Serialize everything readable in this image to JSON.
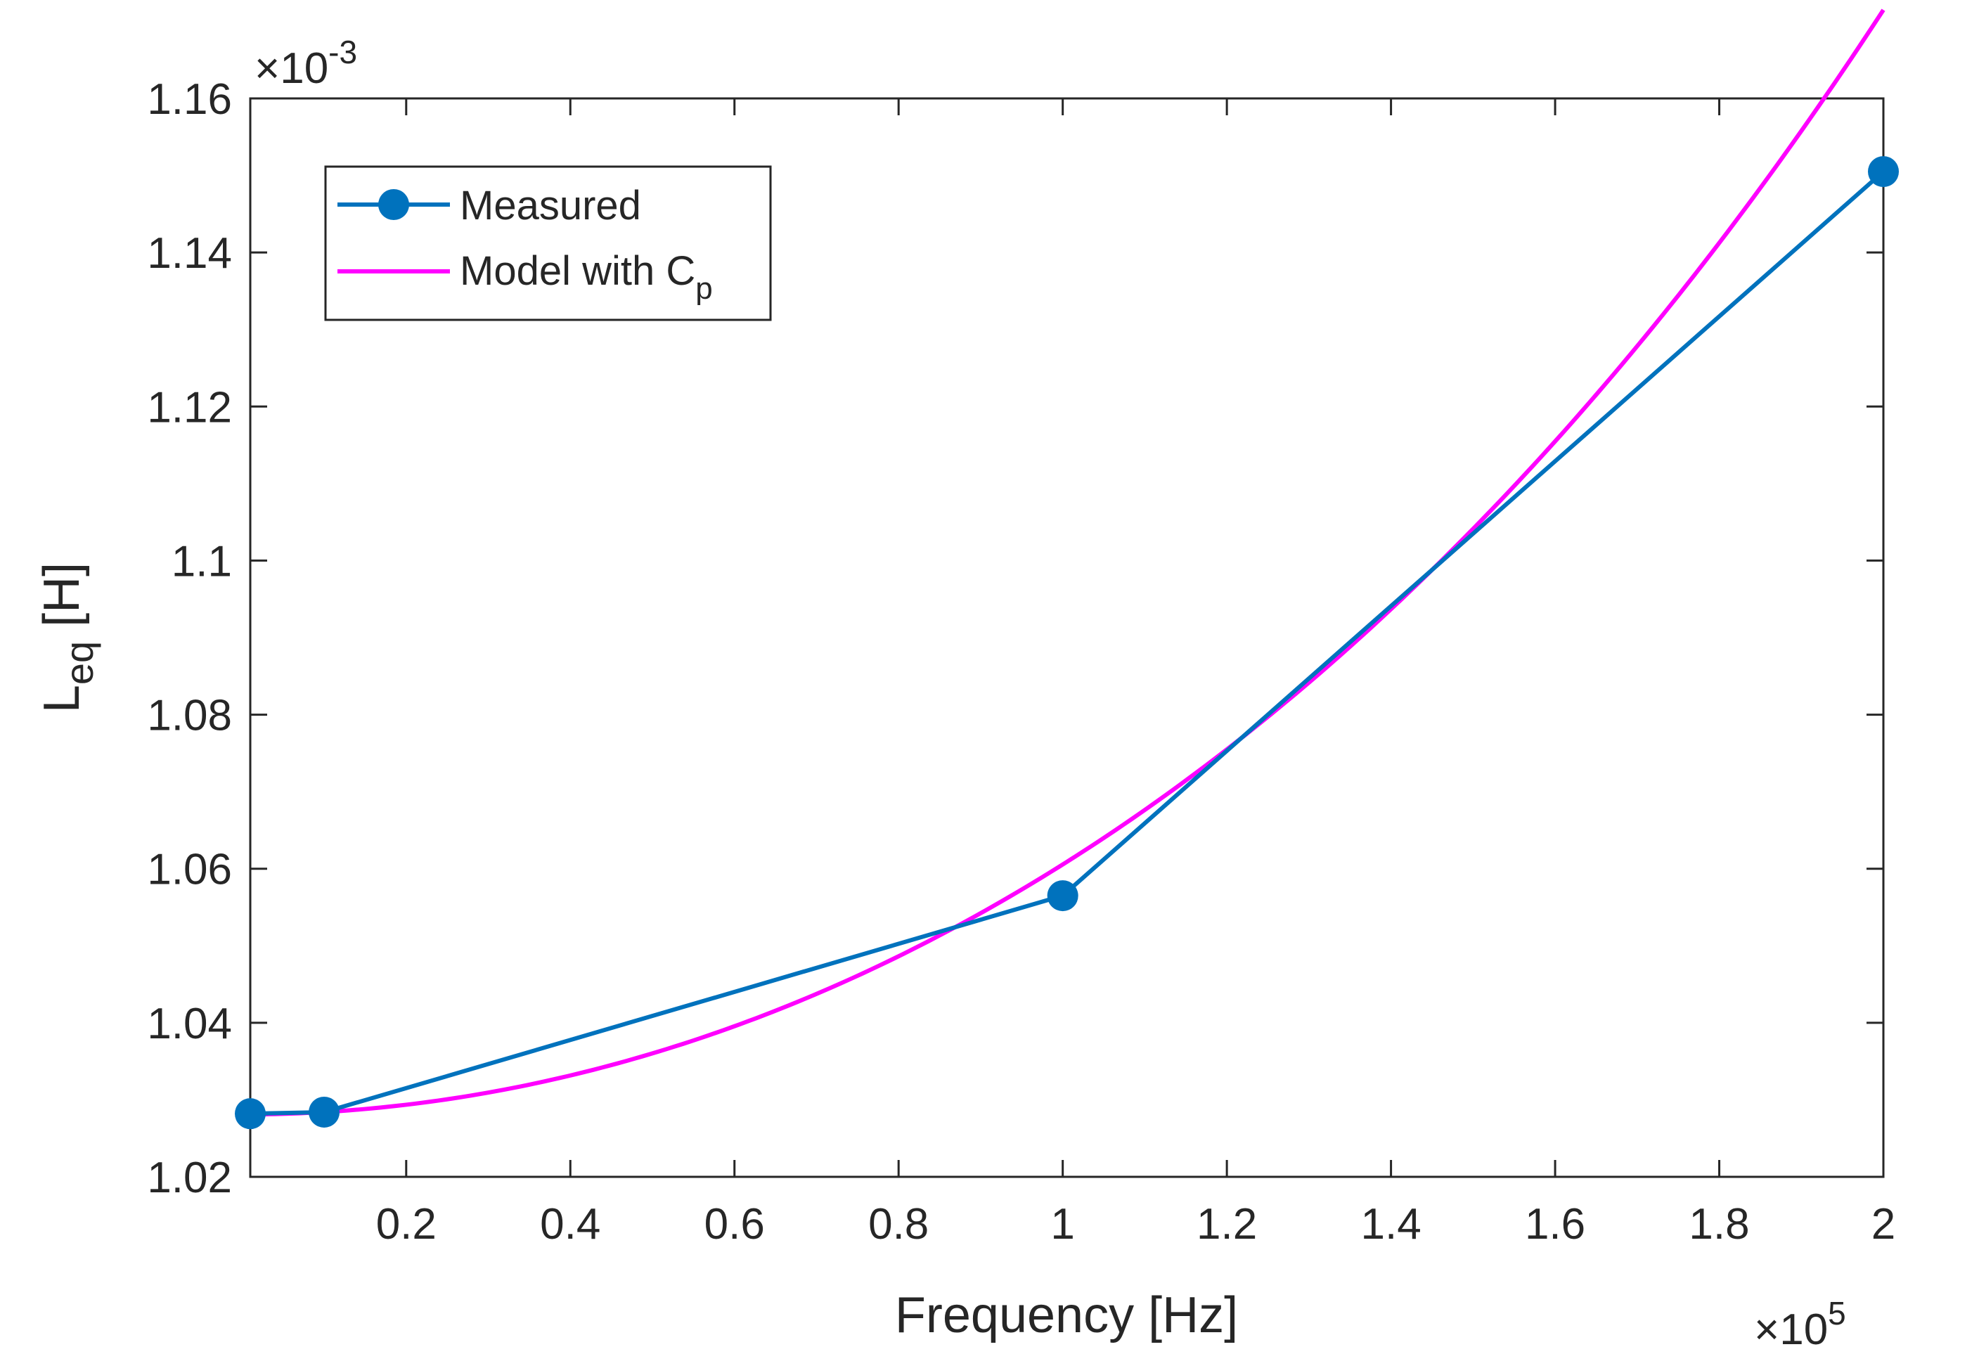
{
  "chart_data": {
    "type": "line",
    "title": "",
    "xlabel": "Frequency [Hz]",
    "ylabel_main": "L",
    "ylabel_sub": "eq",
    "ylabel_unit": " [H]",
    "x_multiplier": {
      "prefix": "×10",
      "power": "5"
    },
    "y_multiplier": {
      "prefix": "×10",
      "power": "-3"
    },
    "xlim": [
      1000,
      200000
    ],
    "ylim": [
      1.02,
      1.16
    ],
    "xticks": [
      20000,
      40000,
      60000,
      80000,
      100000,
      120000,
      140000,
      160000,
      180000,
      200000
    ],
    "xtick_labels": [
      "0.2",
      "0.4",
      "0.6",
      "0.8",
      "1",
      "1.2",
      "1.4",
      "1.6",
      "1.8",
      "2"
    ],
    "yticks": [
      1.02,
      1.04,
      1.06,
      1.08,
      1.1,
      1.12,
      1.14,
      1.16
    ],
    "ytick_labels": [
      "1.02",
      "1.04",
      "1.06",
      "1.08",
      "1.1",
      "1.12",
      "1.14",
      "1.16"
    ],
    "grid": false,
    "legend_position": "top-left",
    "series": [
      {
        "name": "Measured",
        "color": "#0072BD",
        "markers": true,
        "x": [
          1000,
          10000,
          100000,
          200000
        ],
        "y": [
          1.0282,
          1.0284,
          1.0565,
          1.1505
        ]
      },
      {
        "name": "Model with C",
        "name_sub": "p",
        "color": "#FF00FF",
        "markers": false,
        "model": {
          "L0": 1.0281,
          "k": 3.06e-12
        },
        "x_range": [
          1000,
          200000
        ]
      }
    ]
  }
}
